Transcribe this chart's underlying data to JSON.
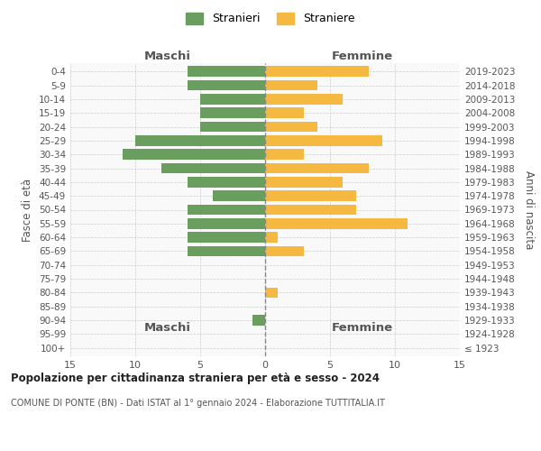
{
  "age_groups": [
    "100+",
    "95-99",
    "90-94",
    "85-89",
    "80-84",
    "75-79",
    "70-74",
    "65-69",
    "60-64",
    "55-59",
    "50-54",
    "45-49",
    "40-44",
    "35-39",
    "30-34",
    "25-29",
    "20-24",
    "15-19",
    "10-14",
    "5-9",
    "0-4"
  ],
  "birth_years": [
    "≤ 1923",
    "1924-1928",
    "1929-1933",
    "1934-1938",
    "1939-1943",
    "1944-1948",
    "1949-1953",
    "1954-1958",
    "1959-1963",
    "1964-1968",
    "1969-1973",
    "1974-1978",
    "1979-1983",
    "1984-1988",
    "1989-1993",
    "1994-1998",
    "1999-2003",
    "2004-2008",
    "2009-2013",
    "2014-2018",
    "2019-2023"
  ],
  "males": [
    0,
    0,
    1,
    0,
    0,
    0,
    0,
    6,
    6,
    6,
    6,
    4,
    6,
    8,
    11,
    10,
    5,
    5,
    5,
    6,
    6
  ],
  "females": [
    0,
    0,
    0,
    0,
    1,
    0,
    0,
    3,
    1,
    11,
    7,
    7,
    6,
    8,
    3,
    9,
    4,
    3,
    6,
    4,
    8
  ],
  "male_color": "#6a9e5f",
  "female_color": "#f5b942",
  "male_label": "Stranieri",
  "female_label": "Straniere",
  "title": "Popolazione per cittadinanza straniera per età e sesso - 2024",
  "subtitle": "COMUNE DI PONTE (BN) - Dati ISTAT al 1° gennaio 2024 - Elaborazione TUTTITALIA.IT",
  "xlabel_left": "Maschi",
  "xlabel_right": "Femmine",
  "ylabel_left": "Fasce di età",
  "ylabel_right": "Anni di nascita",
  "xlim": 15,
  "background_color": "#ffffff",
  "grid_color": "#cccccc",
  "ax_bg_color": "#f9f9f9"
}
